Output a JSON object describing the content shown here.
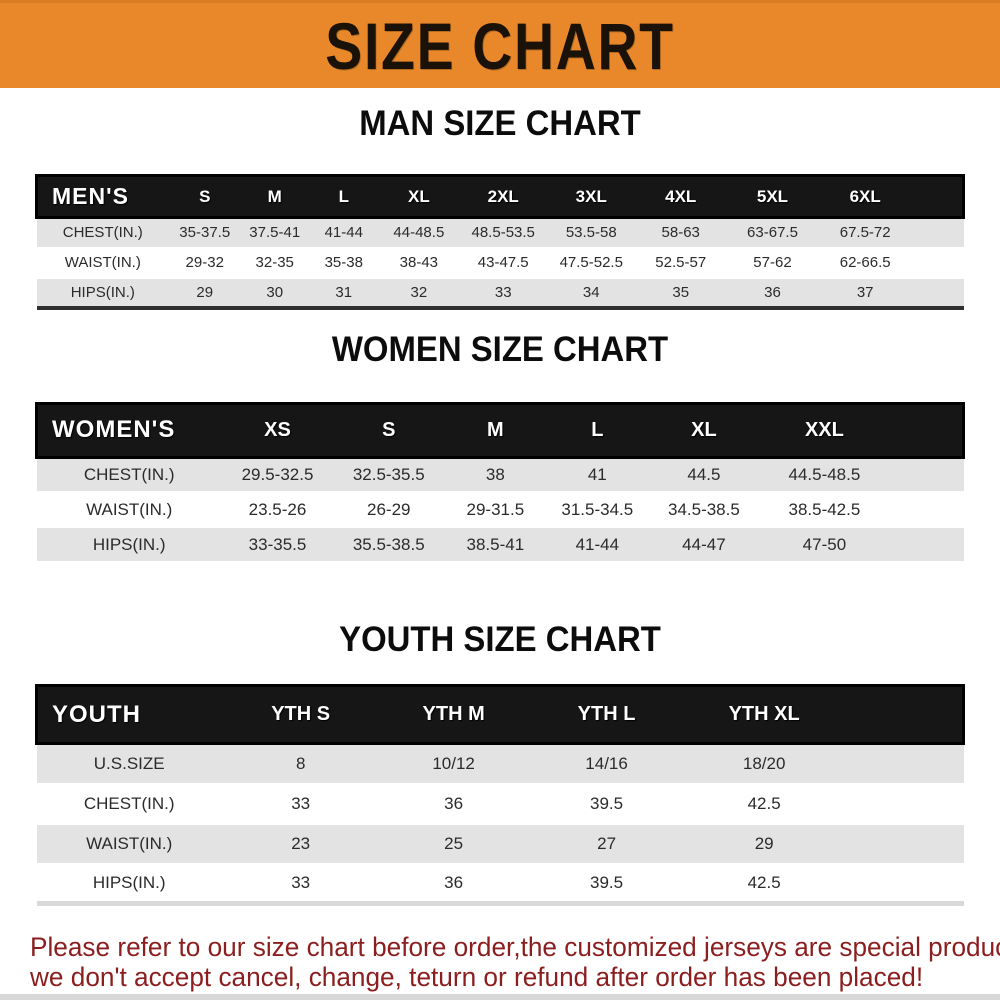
{
  "banner": {
    "title": "SIZE CHART"
  },
  "colors": {
    "banner_bg": "#E9882B",
    "table_header_bg": "#161616",
    "shaded_row_bg": "#E3E3E3",
    "page_bg": "#FFFFFF",
    "footer_text": "#8B1E1E"
  },
  "sections": {
    "men": {
      "title": "MAN SIZE CHART"
    },
    "women": {
      "title": "WOMEN SIZE CHART"
    },
    "youth": {
      "title": "YOUTH SIZE CHART"
    }
  },
  "tables": {
    "men": {
      "header_label": "MEN'S",
      "columns": [
        "S",
        "M",
        "L",
        "XL",
        "2XL",
        "3XL",
        "4XL",
        "5XL",
        "6XL"
      ],
      "col_widths": [
        "14.3%",
        "7.7%",
        "7.4%",
        "7.5%",
        "8.7%",
        "9.5%",
        "9.5%",
        "9.8%",
        "10%",
        "10%",
        "5.6%"
      ],
      "rows": [
        {
          "label": "CHEST(IN.)",
          "shaded": true,
          "values": [
            "35-37.5",
            "37.5-41",
            "41-44",
            "44-48.5",
            "48.5-53.5",
            "53.5-58",
            "58-63",
            "63-67.5",
            "67.5-72"
          ]
        },
        {
          "label": "WAIST(IN.)",
          "shaded": false,
          "values": [
            "29-32",
            "32-35",
            "35-38",
            "38-43",
            "43-47.5",
            "47.5-52.5",
            "52.5-57",
            "57-62",
            "62-66.5"
          ]
        },
        {
          "label": "HIPS(IN.)",
          "shaded": true,
          "values": [
            "29",
            "30",
            "31",
            "32",
            "33",
            "34",
            "35",
            "36",
            "37"
          ]
        }
      ]
    },
    "women": {
      "header_label": "WOMEN'S",
      "columns": [
        "XS",
        "S",
        "M",
        "L",
        "XL",
        "XXL"
      ],
      "col_widths": [
        "20%",
        "12%",
        "12%",
        "11%",
        "11%",
        "12%",
        "14%",
        "8%"
      ],
      "rows": [
        {
          "label": "CHEST(IN.)",
          "shaded": true,
          "values": [
            "29.5-32.5",
            "32.5-35.5",
            "38",
            "41",
            "44.5",
            "44.5-48.5"
          ]
        },
        {
          "label": "WAIST(IN.)",
          "shaded": false,
          "values": [
            "23.5-26",
            "26-29",
            "29-31.5",
            "31.5-34.5",
            "34.5-38.5",
            "38.5-42.5"
          ]
        },
        {
          "label": "HIPS(IN.)",
          "shaded": true,
          "values": [
            "33-35.5",
            "35.5-38.5",
            "38.5-41",
            "41-44",
            "44-47",
            "47-50"
          ]
        }
      ]
    },
    "youth": {
      "header_label": "YOUTH",
      "columns": [
        "YTH S",
        "YTH M",
        "YTH L",
        "YTH XL"
      ],
      "col_widths": [
        "20%",
        "17%",
        "16%",
        "17%",
        "17%",
        "13%"
      ],
      "rows": [
        {
          "label": "U.S.SIZE",
          "shaded": true,
          "values": [
            "8",
            "10/12",
            "14/16",
            "18/20"
          ]
        },
        {
          "label": "CHEST(IN.)",
          "shaded": false,
          "values": [
            "33",
            "36",
            "39.5",
            "42.5"
          ]
        },
        {
          "label": "WAIST(IN.)",
          "shaded": true,
          "values": [
            "23",
            "25",
            "27",
            "29"
          ]
        },
        {
          "label": "HIPS(IN.)",
          "shaded": false,
          "values": [
            "33",
            "36",
            "39.5",
            "42.5"
          ]
        }
      ]
    }
  },
  "footer": {
    "line1": "Please refer to our size chart before order,the customized jerseys are special products,",
    "line2": "we don't accept cancel, change, teturn or refund after order has been placed!"
  }
}
